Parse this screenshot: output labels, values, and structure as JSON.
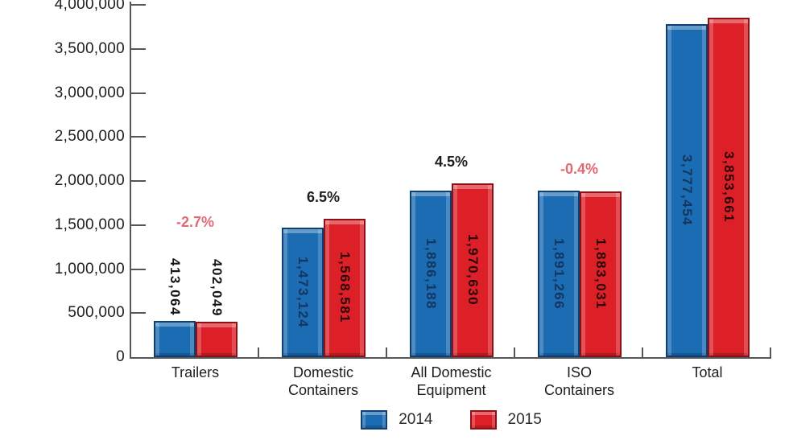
{
  "colors": {
    "background": "#ffffff",
    "axis": "#55565a",
    "text": "#1d1d1f",
    "bar_2014": "#1c6cb3",
    "bar_2014_border": "#0e3f74",
    "bar_2015": "#dd2027",
    "bar_2015_border": "#8f1014",
    "value_label_2014": "#12365f",
    "value_label_2015": "#2b0607",
    "value_label_outside": "#151515",
    "pct_positive": "#1d1d1f",
    "pct_negative": "#e06a73"
  },
  "chart_data": {
    "type": "bar",
    "title": "",
    "xlabel": "",
    "ylabel": "",
    "ylim": [
      0,
      4000000
    ],
    "ytick_step": 500000,
    "ytick_labels": [
      "0",
      "500,000",
      "1,000,000",
      "1,500,000",
      "2,000,000",
      "2,500,000",
      "3,000,000",
      "3,500,000",
      "4,000,000"
    ],
    "grid": false,
    "legend_position": "bottom",
    "categories": [
      [
        "Trailers"
      ],
      [
        "Domestic",
        "Containers"
      ],
      [
        "All Domestic",
        "Equipment"
      ],
      [
        "ISO",
        "Containers"
      ],
      [
        "Total"
      ]
    ],
    "series": [
      {
        "name": "2014",
        "color": "#1c6cb3",
        "values": [
          413064,
          1473124,
          1886188,
          1891266,
          3777454
        ],
        "labels": [
          "413,064",
          "1,473,124",
          "1,886,188",
          "1,891,266",
          "3,777,454"
        ]
      },
      {
        "name": "2015",
        "color": "#dd2027",
        "values": [
          402049,
          1568581,
          1970630,
          1883031,
          3853661
        ],
        "labels": [
          "402,049",
          "1,568,581",
          "1,970,630",
          "1,883,031",
          "3,853,661"
        ]
      }
    ],
    "pct_changes": [
      {
        "label": "-2.7%",
        "direction": "down"
      },
      {
        "label": "6.5%",
        "direction": "up"
      },
      {
        "label": "4.5%",
        "direction": "up"
      },
      {
        "label": "-0.4%",
        "direction": "down"
      },
      null
    ],
    "value_labels_placement": [
      "above",
      "inside",
      "inside",
      "inside",
      "inside"
    ]
  },
  "legend": {
    "items": [
      {
        "label": "2014",
        "color": "#1c6cb3"
      },
      {
        "label": "2015",
        "color": "#dd2027"
      }
    ]
  }
}
